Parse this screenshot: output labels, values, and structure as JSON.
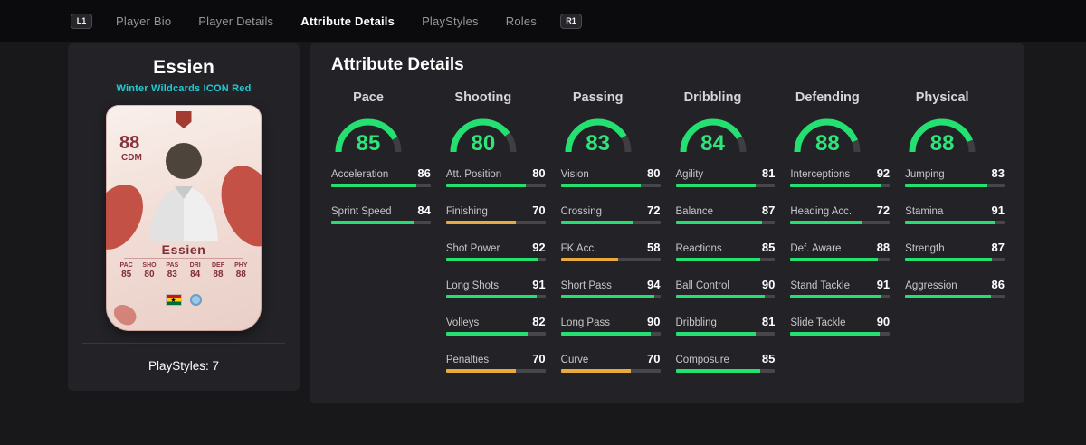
{
  "nav": {
    "left_shoulder": "L1",
    "right_shoulder": "R1",
    "tabs": [
      {
        "label": "Player Bio",
        "active": false
      },
      {
        "label": "Player Details",
        "active": false
      },
      {
        "label": "Attribute Details",
        "active": true
      },
      {
        "label": "PlayStyles",
        "active": false
      },
      {
        "label": "Roles",
        "active": false
      }
    ]
  },
  "player": {
    "name": "Essien",
    "card_type": "Winter Wildcards ICON Red",
    "playstyles": "PlayStyles: 7",
    "card": {
      "rating": "88",
      "position": "CDM",
      "name": "Essien",
      "nation_icon": "ghana-flag",
      "club_icon": "club-badge",
      "stats": [
        {
          "label": "PAC",
          "value": "85"
        },
        {
          "label": "SHO",
          "value": "80"
        },
        {
          "label": "PAS",
          "value": "83"
        },
        {
          "label": "DRI",
          "value": "84"
        },
        {
          "label": "DEF",
          "value": "88"
        },
        {
          "label": "PHY",
          "value": "88"
        }
      ]
    }
  },
  "attributes": {
    "title": "Attribute Details",
    "groups": [
      {
        "name": "Pace",
        "value": 85,
        "stats": [
          {
            "label": "Acceleration",
            "value": 86,
            "color": "green"
          },
          {
            "label": "Sprint Speed",
            "value": 84,
            "color": "green"
          }
        ]
      },
      {
        "name": "Shooting",
        "value": 80,
        "stats": [
          {
            "label": "Att. Position",
            "value": 80,
            "color": "green"
          },
          {
            "label": "Finishing",
            "value": 70,
            "color": "yellow"
          },
          {
            "label": "Shot Power",
            "value": 92,
            "color": "green"
          },
          {
            "label": "Long Shots",
            "value": 91,
            "color": "green"
          },
          {
            "label": "Volleys",
            "value": 82,
            "color": "green"
          },
          {
            "label": "Penalties",
            "value": 70,
            "color": "yellow"
          }
        ]
      },
      {
        "name": "Passing",
        "value": 83,
        "stats": [
          {
            "label": "Vision",
            "value": 80,
            "color": "green"
          },
          {
            "label": "Crossing",
            "value": 72,
            "color": "green"
          },
          {
            "label": "FK Acc.",
            "value": 58,
            "color": "yellow"
          },
          {
            "label": "Short Pass",
            "value": 94,
            "color": "green"
          },
          {
            "label": "Long Pass",
            "value": 90,
            "color": "green"
          },
          {
            "label": "Curve",
            "value": 70,
            "color": "yellow"
          }
        ]
      },
      {
        "name": "Dribbling",
        "value": 84,
        "stats": [
          {
            "label": "Agility",
            "value": 81,
            "color": "green"
          },
          {
            "label": "Balance",
            "value": 87,
            "color": "green"
          },
          {
            "label": "Reactions",
            "value": 85,
            "color": "green"
          },
          {
            "label": "Ball Control",
            "value": 90,
            "color": "green"
          },
          {
            "label": "Dribbling",
            "value": 81,
            "color": "green"
          },
          {
            "label": "Composure",
            "value": 85,
            "color": "green"
          }
        ]
      },
      {
        "name": "Defending",
        "value": 88,
        "stats": [
          {
            "label": "Interceptions",
            "value": 92,
            "color": "green"
          },
          {
            "label": "Heading Acc.",
            "value": 72,
            "color": "green"
          },
          {
            "label": "Def. Aware",
            "value": 88,
            "color": "green"
          },
          {
            "label": "Stand Tackle",
            "value": 91,
            "color": "green"
          },
          {
            "label": "Slide Tackle",
            "value": 90,
            "color": "green"
          }
        ]
      },
      {
        "name": "Physical",
        "value": 88,
        "stats": [
          {
            "label": "Jumping",
            "value": 83,
            "color": "green"
          },
          {
            "label": "Stamina",
            "value": 91,
            "color": "green"
          },
          {
            "label": "Strength",
            "value": 87,
            "color": "green"
          },
          {
            "label": "Aggression",
            "value": 86,
            "color": "green"
          }
        ]
      }
    ]
  },
  "colors": {
    "green": "#23e070",
    "yellow": "#e9a93c",
    "gauge_green": "#2ee57a",
    "subtitle_teal": "#1fccd4"
  }
}
